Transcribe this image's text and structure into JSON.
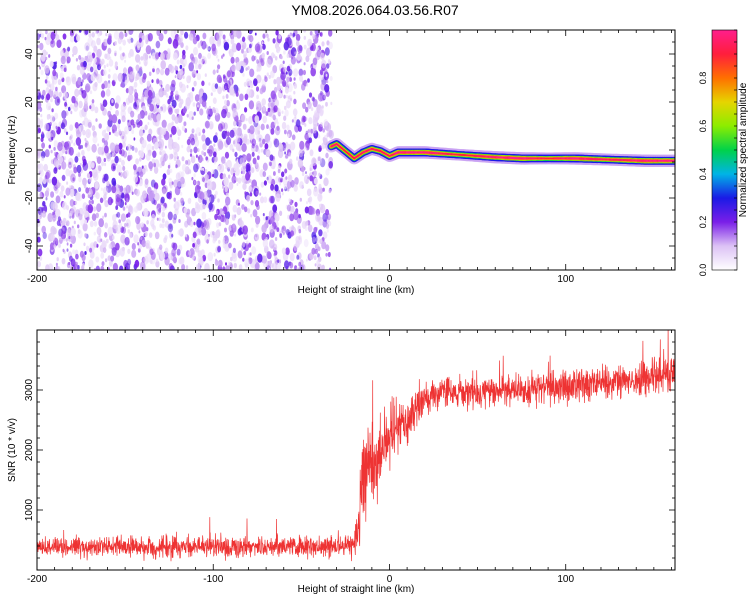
{
  "title": "YM08.2026.064.03.56.R07",
  "chart_data": [
    {
      "type": "heatmap",
      "name": "spectrogram",
      "xlabel": "Height of straight line (km)",
      "ylabel": "Frequency (Hz)",
      "xlim": [
        -200,
        162
      ],
      "ylim": [
        -50,
        50
      ],
      "xticks": [
        -200,
        -100,
        0,
        100
      ],
      "yticks": [
        -40,
        -20,
        0,
        20,
        40
      ],
      "noise_region": {
        "x_range": [
          -200,
          -33
        ],
        "freq_range": [
          -50,
          50
        ],
        "amplitude_range": [
          0.05,
          0.25
        ]
      },
      "signal_track": [
        {
          "x": -33,
          "f": 1.5,
          "amp": 0.85
        },
        {
          "x": -30,
          "f": 2.5,
          "amp": 0.8
        },
        {
          "x": -25,
          "f": -0.5,
          "amp": 0.75
        },
        {
          "x": -20,
          "f": -3.5,
          "amp": 0.8
        },
        {
          "x": -15,
          "f": -1.0,
          "amp": 0.85
        },
        {
          "x": -10,
          "f": 0.5,
          "amp": 0.8
        },
        {
          "x": -5,
          "f": -0.5,
          "amp": 0.8
        },
        {
          "x": 0,
          "f": -2.5,
          "amp": 0.8
        },
        {
          "x": 5,
          "f": -1.0,
          "amp": 0.95
        },
        {
          "x": 20,
          "f": -1.0,
          "amp": 0.95
        },
        {
          "x": 40,
          "f": -2.0,
          "amp": 0.7
        },
        {
          "x": 60,
          "f": -3.0,
          "amp": 0.9
        },
        {
          "x": 75,
          "f": -3.5,
          "amp": 0.95
        },
        {
          "x": 90,
          "f": -3.5,
          "amp": 0.75
        },
        {
          "x": 105,
          "f": -3.5,
          "amp": 0.95
        },
        {
          "x": 125,
          "f": -4.0,
          "amp": 0.8
        },
        {
          "x": 145,
          "f": -4.5,
          "amp": 0.95
        },
        {
          "x": 162,
          "f": -4.5,
          "amp": 0.9
        }
      ],
      "colorbar": {
        "label": "Normalized spectral amplitude",
        "range": [
          0.0,
          1.0
        ],
        "ticks": [
          "0.0",
          "0.2",
          "0.4",
          "0.6",
          "0.8"
        ],
        "tick_values": [
          0.0,
          0.2,
          0.4,
          0.6,
          0.8
        ],
        "colors": [
          "#ffffff",
          "#dcc2f5",
          "#7a1fe8",
          "#1a1ae6",
          "#00b4e6",
          "#00d24a",
          "#8ced00",
          "#e6d400",
          "#ff7000",
          "#ff1e3c",
          "#ff1e8c"
        ]
      }
    },
    {
      "type": "line",
      "name": "snr",
      "xlabel": "Height of straight line (km)",
      "ylabel": "SNR (10 * v/v)",
      "xlim": [
        -200,
        162
      ],
      "ylim": [
        0,
        4000
      ],
      "xticks": [
        -200,
        -100,
        0,
        100
      ],
      "yticks": [
        1000,
        2000,
        3000
      ],
      "color": "#ee3333",
      "envelope": {
        "x": [
          -200,
          -150,
          -100,
          -50,
          -20,
          -17,
          -15,
          -12,
          -10,
          -5,
          0,
          10,
          20,
          30,
          50,
          70,
          100,
          130,
          162
        ],
        "mean": [
          400,
          380,
          390,
          390,
          420,
          700,
          1400,
          1900,
          1700,
          2000,
          2200,
          2500,
          2900,
          2950,
          2950,
          3000,
          3050,
          3150,
          3300
        ],
        "noise": [
          180,
          180,
          180,
          170,
          200,
          500,
          900,
          600,
          700,
          700,
          500,
          400,
          300,
          270,
          260,
          270,
          280,
          300,
          320
        ]
      }
    }
  ]
}
